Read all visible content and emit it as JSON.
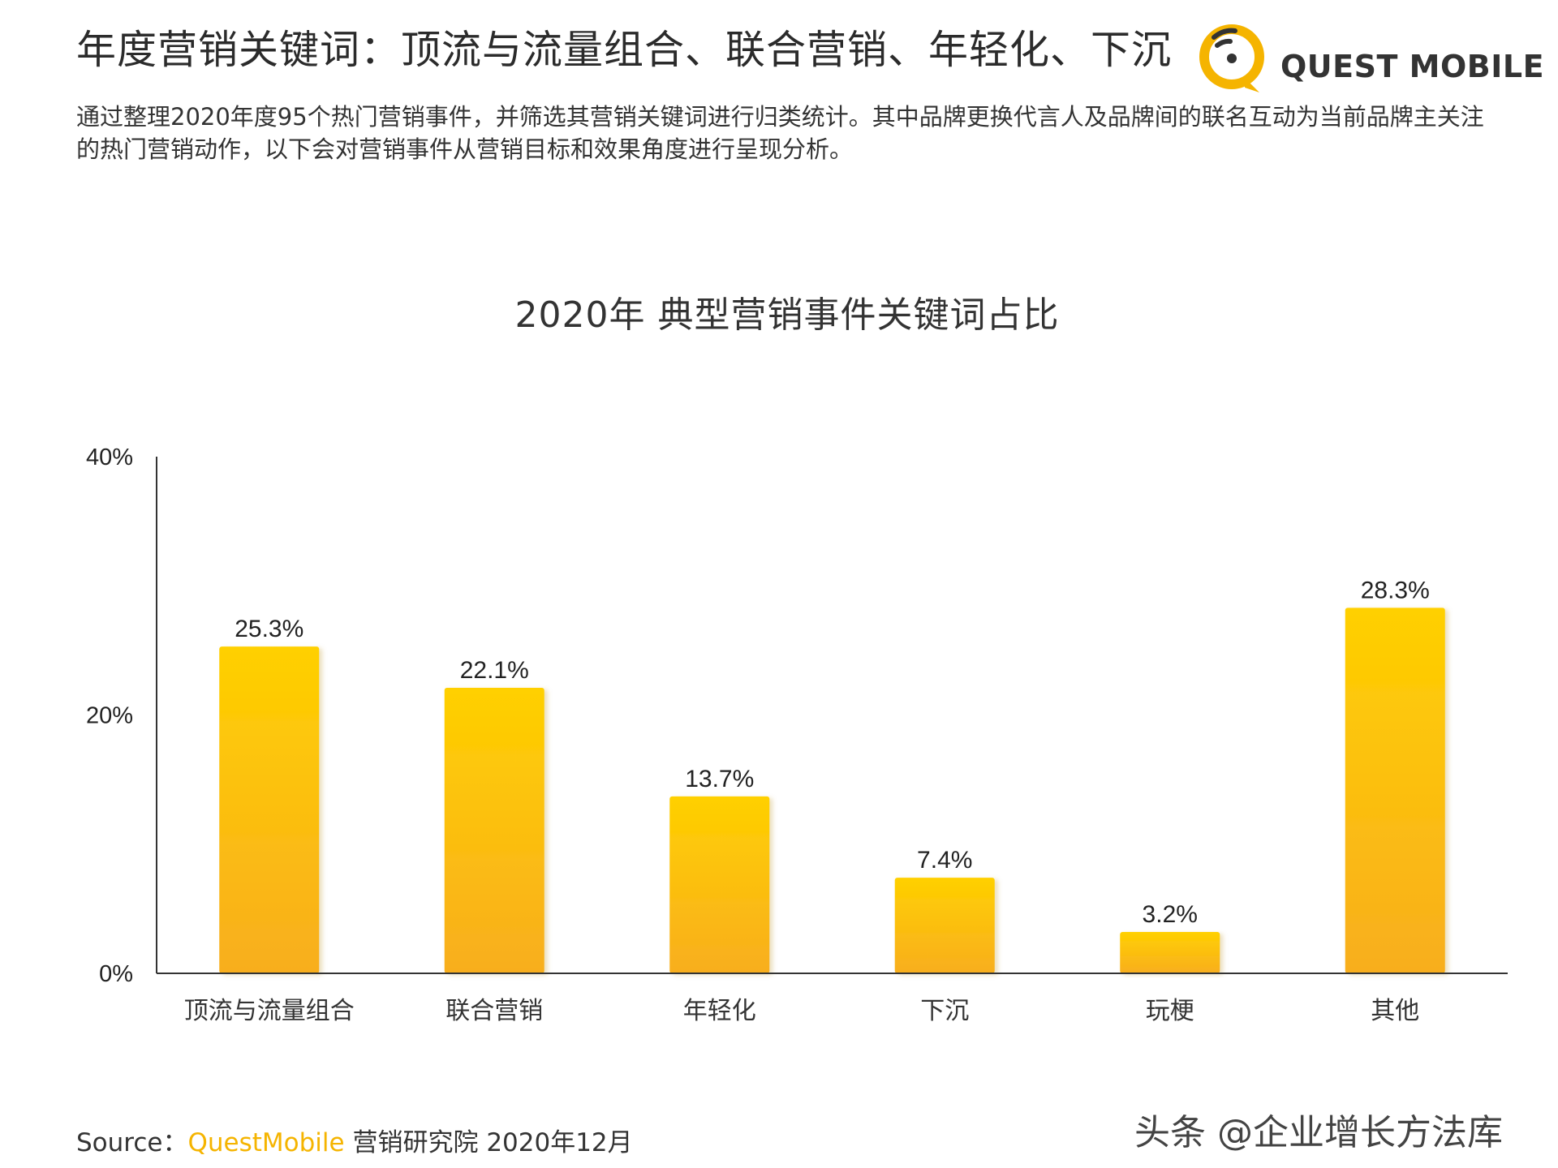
{
  "header": {
    "title": "年度营销关键词：顶流与流量组合、联合营销、年轻化、下沉",
    "description": "通过整理2020年度95个热门营销事件，并筛选其营销关键词进行归类统计。其中品牌更换代言人及品牌间的联名互动为当前品牌主关注的热门营销动作，以下会对营销事件从营销目标和效果角度进行呈现分析。"
  },
  "logo": {
    "text": "QUEST MOBILE"
  },
  "chart_data": {
    "type": "bar",
    "title": "2020年 典型营销事件关键词占比",
    "categories": [
      "顶流与流量组合",
      "联合营销",
      "年轻化",
      "下沉",
      "玩梗",
      "其他"
    ],
    "values": [
      25.3,
      22.1,
      13.7,
      7.4,
      3.2,
      28.3
    ],
    "data_labels": [
      "25.3%",
      "22.1%",
      "13.7%",
      "7.4%",
      "3.2%",
      "28.3%"
    ],
    "ylim": [
      0,
      40
    ],
    "yticks": [
      "0%",
      "20%",
      "40%"
    ],
    "ytick_values": [
      0,
      20,
      40
    ],
    "grid": false,
    "colors": {
      "bar_top": "#ffd000",
      "bar_bottom": "#f8ae1e",
      "axis": "#333333"
    }
  },
  "footer": {
    "source_label": "Source：",
    "source_brand": "QuestMobile",
    "source_rest": " 营销研究院 2020年12月",
    "watermark": "头条 @企业增长方法库"
  }
}
